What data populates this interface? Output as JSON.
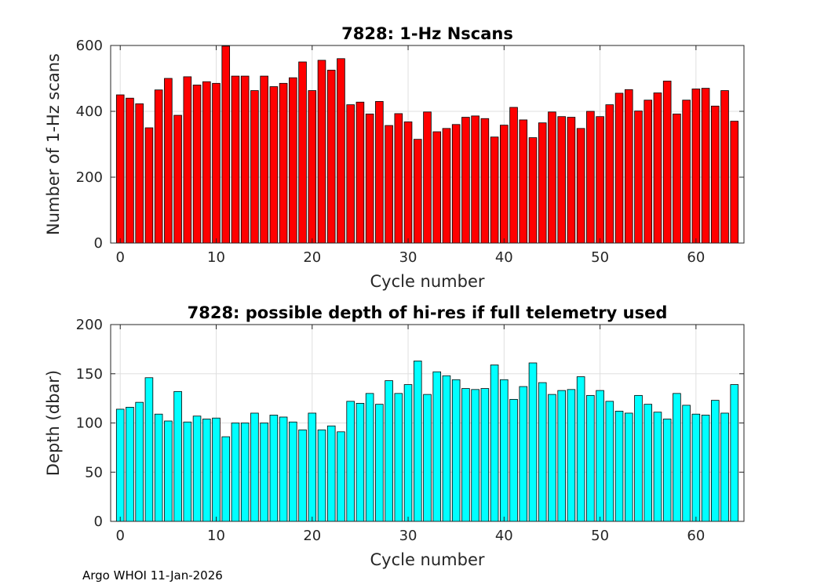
{
  "footer": "Argo WHOI 11-Jan-2026",
  "chart_data": [
    {
      "type": "bar",
      "title": "7828: 1-Hz Nscans",
      "xlabel": "Cycle number",
      "ylabel": "Number of 1-Hz scans",
      "xlim": [
        -1,
        65
      ],
      "ylim": [
        0,
        600
      ],
      "xticks": [
        0,
        10,
        20,
        30,
        40,
        50,
        60
      ],
      "yticks": [
        0,
        200,
        400,
        600
      ],
      "grid": true,
      "color": "#ff0000",
      "x": [
        0,
        1,
        2,
        3,
        4,
        5,
        6,
        7,
        8,
        9,
        10,
        11,
        12,
        13,
        14,
        15,
        16,
        17,
        18,
        19,
        20,
        21,
        22,
        23,
        24,
        25,
        26,
        27,
        28,
        29,
        30,
        31,
        32,
        33,
        34,
        35,
        36,
        37,
        38,
        39,
        40,
        41,
        42,
        43,
        44,
        45,
        46,
        47,
        48,
        49,
        50,
        51,
        52,
        53,
        54,
        55,
        56,
        57,
        58,
        59,
        60,
        61,
        62,
        63,
        64
      ],
      "values": [
        450,
        440,
        423,
        350,
        465,
        500,
        388,
        505,
        480,
        490,
        485,
        598,
        507,
        507,
        463,
        507,
        475,
        485,
        502,
        550,
        463,
        555,
        525,
        560,
        420,
        428,
        392,
        430,
        357,
        393,
        368,
        315,
        398,
        338,
        348,
        360,
        382,
        386,
        378,
        322,
        358,
        412,
        374,
        320,
        365,
        398,
        384,
        382,
        348,
        400,
        384,
        420,
        455,
        466,
        401,
        434,
        456,
        492,
        392,
        434,
        468,
        470,
        416,
        463,
        370
      ]
    },
    {
      "type": "bar",
      "title": "7828: possible depth of hi-res if full telemetry used",
      "xlabel": "Cycle number",
      "ylabel": "Depth (dbar)",
      "xlim": [
        -1,
        65
      ],
      "ylim": [
        0,
        200
      ],
      "xticks": [
        0,
        10,
        20,
        30,
        40,
        50,
        60
      ],
      "yticks": [
        0,
        50,
        100,
        150,
        200
      ],
      "grid": true,
      "color": "#00ffff",
      "x": [
        0,
        1,
        2,
        3,
        4,
        5,
        6,
        7,
        8,
        9,
        10,
        11,
        12,
        13,
        14,
        15,
        16,
        17,
        18,
        19,
        20,
        21,
        22,
        23,
        24,
        25,
        26,
        27,
        28,
        29,
        30,
        31,
        32,
        33,
        34,
        35,
        36,
        37,
        38,
        39,
        40,
        41,
        42,
        43,
        44,
        45,
        46,
        47,
        48,
        49,
        50,
        51,
        52,
        53,
        54,
        55,
        56,
        57,
        58,
        59,
        60,
        61,
        62,
        63,
        64
      ],
      "values": [
        114,
        116,
        121,
        146,
        109,
        102,
        132,
        101,
        107,
        104,
        105,
        86,
        100,
        100,
        110,
        100,
        108,
        106,
        101,
        93,
        110,
        93,
        97,
        91,
        122,
        120,
        130,
        119,
        143,
        130,
        139,
        163,
        129,
        152,
        148,
        144,
        135,
        134,
        135,
        159,
        144,
        124,
        137,
        161,
        141,
        129,
        133,
        134,
        147,
        128,
        133,
        122,
        112,
        110,
        128,
        119,
        111,
        104,
        130,
        118,
        109,
        108,
        123,
        110,
        139
      ]
    }
  ]
}
